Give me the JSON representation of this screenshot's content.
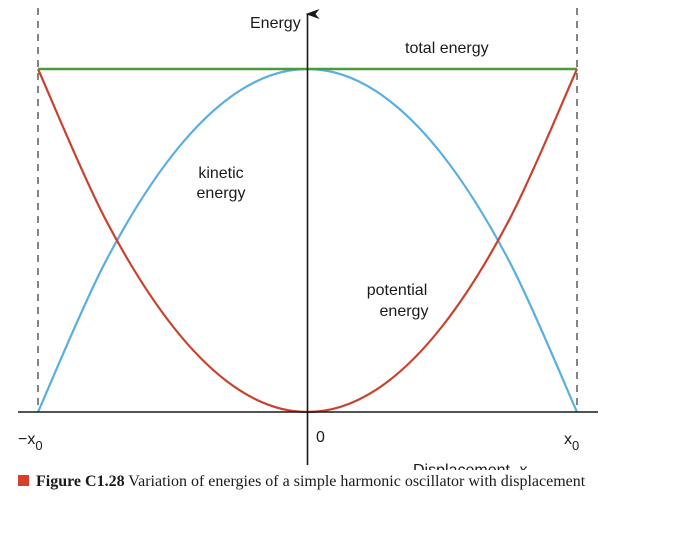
{
  "chart_data": {
    "type": "line",
    "title": "",
    "xlabel": "Displacement, x",
    "ylabel": "Energy",
    "x_ticks": [
      {
        "x": -1,
        "label_main": "−x",
        "label_sub": "0"
      },
      {
        "x": 0,
        "label_main": "0",
        "label_sub": ""
      },
      {
        "x": 1,
        "label_main": "x",
        "label_sub": "0"
      }
    ],
    "xlim": [
      -1,
      1
    ],
    "ylim": [
      0,
      1
    ],
    "grid": false,
    "series": [
      {
        "name": "total energy",
        "color": "#4c9a3a",
        "x": [
          -1,
          1
        ],
        "y": [
          1,
          1
        ]
      },
      {
        "name": "kinetic energy",
        "color": "#5bafe0",
        "x": [
          -1,
          -0.75,
          -0.5,
          -0.25,
          0,
          0.25,
          0.5,
          0.75,
          1
        ],
        "y": [
          0,
          0.4375,
          0.75,
          0.9375,
          1,
          0.9375,
          0.75,
          0.4375,
          0
        ]
      },
      {
        "name": "potential energy",
        "color": "#c8432f",
        "x": [
          -1,
          -0.75,
          -0.5,
          -0.25,
          0,
          0.25,
          0.5,
          0.75,
          1
        ],
        "y": [
          1,
          0.5625,
          0.25,
          0.0625,
          0,
          0.0625,
          0.25,
          0.5625,
          1
        ]
      }
    ],
    "annotations": {
      "total": "total energy",
      "kinetic_line1": "kinetic",
      "kinetic_line2": "energy",
      "potential_line1": "potential",
      "potential_line2": "energy"
    }
  },
  "caption": {
    "marker_color": "#d6402c",
    "label": "Figure C1.28",
    "text": " Variation of energies of a simple harmonic oscillator with displacement"
  }
}
